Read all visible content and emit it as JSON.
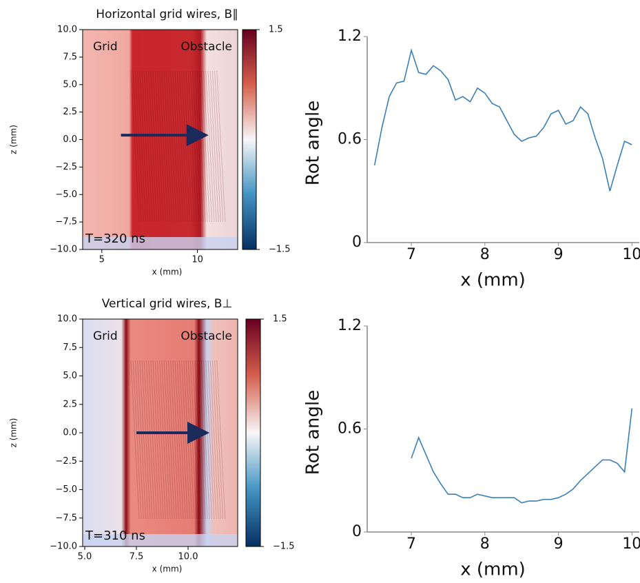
{
  "chart_data": [
    {
      "type": "heatmap",
      "title": "Horizontal grid wires, B∥",
      "xlabel": "x (mm)",
      "ylabel": "z (mm)",
      "xlim": [
        4,
        12.1
      ],
      "xticks": [
        5,
        10
      ],
      "ylim": [
        -10,
        10
      ],
      "yticks": [
        {
          "value": 10,
          "label": "10.0"
        },
        {
          "value": 7.5,
          "label": "7.5"
        },
        {
          "value": 5,
          "label": "5.0"
        },
        {
          "value": 2.5,
          "label": "2.5"
        },
        {
          "value": 0,
          "label": "0.0"
        },
        {
          "value": -2.5,
          "label": "−2.5"
        },
        {
          "value": -5,
          "label": "−5.0"
        },
        {
          "value": -7.5,
          "label": "−7.5"
        },
        {
          "value": -10,
          "label": "−10.0"
        }
      ],
      "clim": [
        -1.5,
        1.5
      ],
      "cticks": [
        1.5,
        {
          "value": -1.5,
          "label": "−1.5"
        }
      ],
      "annotations": [
        "Grid",
        "Obstacle",
        "T=320 ns"
      ]
    },
    {
      "type": "line",
      "ylabel": "Rot angle",
      "xlabel": "x (mm)",
      "color": "#3a7fb5",
      "xlim": [
        6.4,
        10.1
      ],
      "xticks": [
        7,
        8,
        9,
        10
      ],
      "ylim": [
        0,
        1.2
      ],
      "yticks": [
        0,
        0.6,
        1.2
      ],
      "x": [
        6.5,
        6.6,
        6.7,
        6.8,
        6.9,
        7.0,
        7.1,
        7.2,
        7.3,
        7.4,
        7.5,
        7.6,
        7.7,
        7.8,
        7.9,
        8.0,
        8.1,
        8.2,
        8.3,
        8.4,
        8.5,
        8.6,
        8.7,
        8.8,
        8.9,
        9.0,
        9.1,
        9.2,
        9.3,
        9.4,
        9.5,
        9.6,
        9.7,
        9.8,
        9.9,
        10.0
      ],
      "values": [
        0.45,
        0.67,
        0.85,
        0.93,
        0.94,
        1.12,
        0.99,
        0.98,
        1.03,
        1.0,
        0.95,
        0.83,
        0.85,
        0.82,
        0.9,
        0.87,
        0.81,
        0.79,
        0.71,
        0.63,
        0.59,
        0.61,
        0.62,
        0.67,
        0.75,
        0.77,
        0.69,
        0.71,
        0.79,
        0.75,
        0.61,
        0.49,
        0.3,
        0.45,
        0.59,
        0.57
      ]
    },
    {
      "type": "heatmap",
      "title": "Vertical grid wires, B⊥",
      "xlabel": "x (mm)",
      "ylabel": "z (mm)",
      "xlim": [
        4.9,
        12.4
      ],
      "xticks": [
        {
          "value": 5,
          "label": "5.0"
        },
        {
          "value": 7.5,
          "label": "7.5"
        },
        {
          "value": 10,
          "label": "10.0"
        }
      ],
      "ylim": [
        -10,
        10
      ],
      "yticks": [
        {
          "value": 10,
          "label": "10.0"
        },
        {
          "value": 7.5,
          "label": "7.5"
        },
        {
          "value": 5,
          "label": "5.0"
        },
        {
          "value": 2.5,
          "label": "2.5"
        },
        {
          "value": 0,
          "label": "0.0"
        },
        {
          "value": -2.5,
          "label": "−2.5"
        },
        {
          "value": -5,
          "label": "−5.0"
        },
        {
          "value": -7.5,
          "label": "−7.5"
        },
        {
          "value": -10,
          "label": "−10.0"
        }
      ],
      "clim": [
        -1.5,
        1.5
      ],
      "cticks": [
        1.5,
        {
          "value": -1.5,
          "label": "−1.5"
        }
      ],
      "annotations": [
        "Grid",
        "Obstacle",
        "T=310 ns"
      ]
    },
    {
      "type": "line",
      "ylabel": "Rot angle",
      "xlabel": "x (mm)",
      "color": "#3a7fb5",
      "xlim": [
        6.4,
        10.1
      ],
      "xticks": [
        7,
        8,
        9,
        10
      ],
      "ylim": [
        0,
        1.2
      ],
      "yticks": [
        0,
        0.6,
        1.2
      ],
      "x": [
        7.0,
        7.1,
        7.2,
        7.3,
        7.4,
        7.5,
        7.6,
        7.7,
        7.8,
        7.9,
        8.0,
        8.1,
        8.2,
        8.3,
        8.4,
        8.5,
        8.6,
        8.7,
        8.8,
        8.9,
        9.0,
        9.1,
        9.2,
        9.3,
        9.4,
        9.5,
        9.6,
        9.7,
        9.8,
        9.9,
        10.0
      ],
      "values": [
        0.43,
        0.55,
        0.45,
        0.35,
        0.28,
        0.22,
        0.22,
        0.2,
        0.2,
        0.22,
        0.21,
        0.2,
        0.2,
        0.2,
        0.2,
        0.17,
        0.18,
        0.18,
        0.19,
        0.19,
        0.2,
        0.22,
        0.25,
        0.3,
        0.34,
        0.38,
        0.42,
        0.42,
        0.4,
        0.35,
        0.72
      ]
    }
  ]
}
